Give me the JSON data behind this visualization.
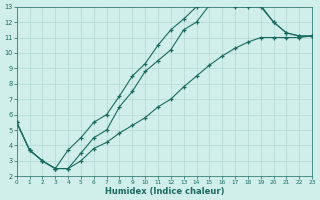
{
  "xlabel": "Humidex (Indice chaleur)",
  "bg_color": "#d0eeea",
  "grid_color": "#b2d8d4",
  "line_color": "#1a6b5e",
  "xlim": [
    0,
    23
  ],
  "ylim": [
    2,
    13
  ],
  "xticks": [
    0,
    1,
    2,
    3,
    4,
    5,
    6,
    7,
    8,
    9,
    10,
    11,
    12,
    13,
    14,
    15,
    16,
    17,
    18,
    19,
    20,
    21,
    22,
    23
  ],
  "yticks": [
    2,
    3,
    4,
    5,
    6,
    7,
    8,
    9,
    10,
    11,
    12,
    13
  ],
  "curve1_x": [
    0,
    1,
    2,
    3,
    4,
    5,
    6,
    7,
    8,
    9,
    10,
    11,
    12,
    13,
    14,
    15,
    16,
    17,
    18,
    19,
    20,
    21,
    22,
    23
  ],
  "curve1_y": [
    5.5,
    3.7,
    3.0,
    2.5,
    3.7,
    4.5,
    5.5,
    6.0,
    7.2,
    8.5,
    9.3,
    10.5,
    11.5,
    12.2,
    13.0,
    13.2,
    13.2,
    13.0,
    13.0,
    13.0,
    12.0,
    11.3,
    11.1,
    11.1
  ],
  "curve2_x": [
    0,
    1,
    2,
    3,
    4,
    5,
    6,
    7,
    8,
    9,
    10,
    11,
    12,
    13,
    14,
    15,
    16,
    17,
    18,
    19,
    20,
    21,
    22,
    23
  ],
  "curve2_y": [
    5.5,
    3.7,
    3.0,
    2.5,
    2.5,
    3.5,
    4.5,
    5.0,
    6.5,
    7.5,
    8.8,
    9.5,
    10.2,
    11.5,
    12.0,
    13.1,
    13.2,
    13.2,
    13.2,
    13.1,
    12.0,
    11.3,
    11.1,
    11.1
  ],
  "curve3_x": [
    0,
    1,
    2,
    3,
    4,
    5,
    6,
    7,
    8,
    9,
    10,
    11,
    12,
    13,
    14,
    15,
    16,
    17,
    18,
    19,
    20,
    21,
    22,
    23
  ],
  "curve3_y": [
    5.5,
    3.7,
    3.0,
    2.5,
    2.5,
    3.0,
    3.8,
    4.2,
    4.8,
    5.3,
    5.8,
    6.5,
    7.0,
    7.8,
    8.5,
    9.2,
    9.8,
    10.3,
    10.7,
    11.0,
    11.0,
    11.0,
    11.0,
    11.1
  ]
}
